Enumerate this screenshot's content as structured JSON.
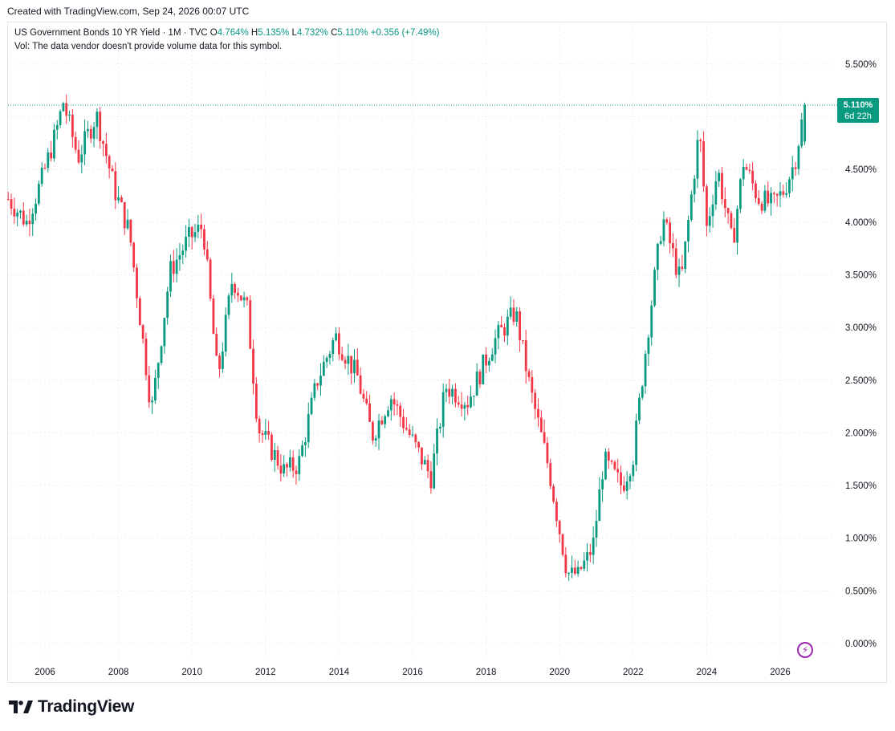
{
  "header": {
    "created": "Created with TradingView.com, Sep 24, 2026 00:07 UTC"
  },
  "legend": {
    "symbol": "US Government Bonds 10 YR Yield · 1M · TVC",
    "o_label": "O",
    "o_value": "4.764%",
    "h_label": "H",
    "h_value": "5.135%",
    "l_label": "L",
    "l_value": "4.732%",
    "c_label": "C",
    "c_value": "5.110%",
    "change": "+0.356 (+7.49%)",
    "vol_note": "Vol: The data vendor doesn't provide volume data for this symbol."
  },
  "price_tag": {
    "value": "5.110%",
    "countdown": "6d 22h"
  },
  "brand": {
    "name": "TradingView"
  },
  "icons": {
    "lightning": "lightning-icon"
  },
  "colors": {
    "up": "#089981",
    "down": "#f23645",
    "grid": "#eceff2",
    "axis_text": "#131722"
  },
  "chart_data": {
    "type": "candlestick",
    "title": "US Government Bonds 10 YR Yield",
    "interval": "1M",
    "unit": "%",
    "y_ticks": [
      "5.500%",
      "5.000%",
      "4.500%",
      "4.000%",
      "3.500%",
      "3.000%",
      "2.500%",
      "2.000%",
      "1.500%",
      "1.000%",
      "0.500%",
      "0.000%"
    ],
    "x_ticks": [
      "2006",
      "2008",
      "2010",
      "2012",
      "2014",
      "2016",
      "2018",
      "2020",
      "2022",
      "2024",
      "2026"
    ],
    "ylim": [
      0,
      5.5
    ],
    "grid": true,
    "last_value": 5.11,
    "close_series": {
      "2005.0": 4.22,
      "2005.5": 4.0,
      "2005.9": 4.39,
      "2006.3": 4.85,
      "2006.5": 5.14,
      "2006.9": 4.61,
      "2007.4": 5.02,
      "2007.9": 4.3,
      "2008.3": 3.9,
      "2008.9": 2.21,
      "2009.4": 3.53,
      "2009.9": 3.84,
      "2010.3": 3.96,
      "2010.7": 2.51,
      "2011.1": 3.47,
      "2011.5": 3.17,
      "2011.8": 2.05,
      "2012.5": 1.64,
      "2012.9": 1.7,
      "2013.4": 2.49,
      "2013.9": 2.92,
      "2014.5": 2.53,
      "2014.9": 1.97,
      "2015.4": 2.35,
      "2016.1": 1.85,
      "2016.5": 1.58,
      "2016.9": 2.44,
      "2017.5": 2.3,
      "2018.2": 2.86,
      "2018.8": 3.15,
      "2019.2": 2.41,
      "2019.7": 1.67,
      "2020.2": 0.67,
      "2020.5": 0.66,
      "2020.9": 0.91,
      "2021.2": 1.74,
      "2021.7": 1.49,
      "2022.0": 1.78,
      "2022.4": 2.97,
      "2022.8": 4.05,
      "2023.3": 3.42,
      "2023.8": 4.88,
      "2024.0": 3.95,
      "2024.3": 4.5,
      "2024.7": 3.78,
      "2025.0": 4.57,
      "2025.4": 4.23,
      "2025.8": 4.16,
      "2026.1": 4.3,
      "2026.4": 4.58,
      "2026.67": 5.11
    }
  }
}
